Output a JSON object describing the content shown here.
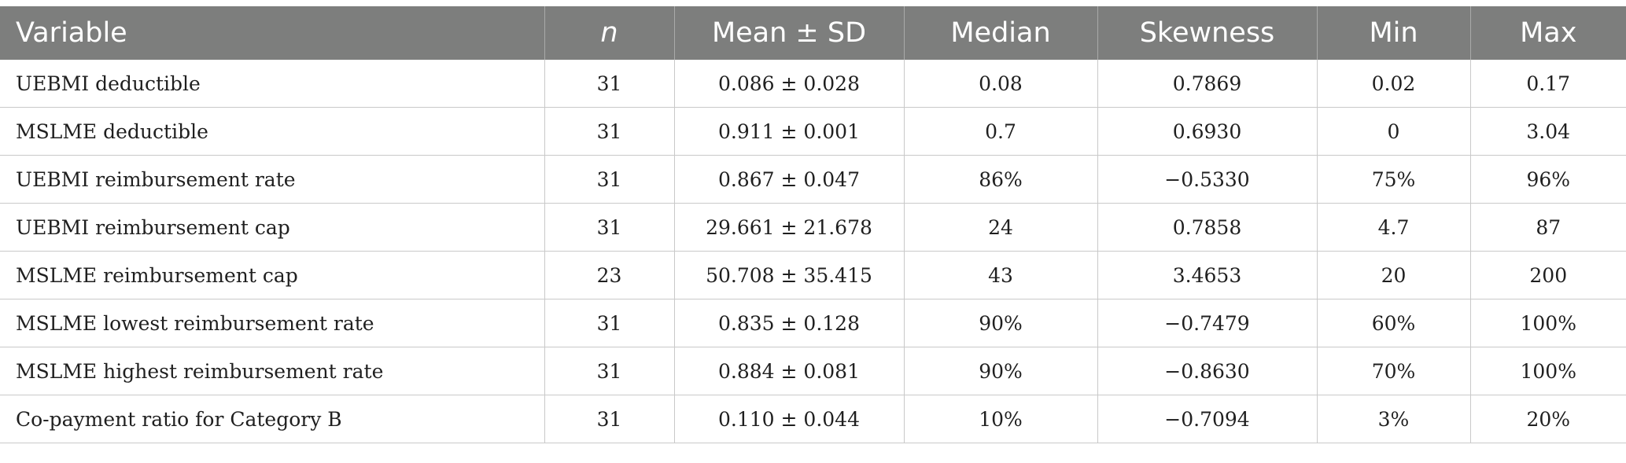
{
  "table": {
    "headers": [
      "Variable",
      "n",
      "Mean ± SD",
      "Median",
      "Skewness",
      "Min",
      "Max"
    ],
    "rows": [
      [
        "UEBMI deductible",
        "31",
        "0.086 ± 0.028",
        "0.08",
        "0.7869",
        "0.02",
        "0.17"
      ],
      [
        "MSLME deductible",
        "31",
        "0.911 ± 0.001",
        "0.7",
        "0.6930",
        "0",
        "3.04"
      ],
      [
        "UEBMI reimbursement rate",
        "31",
        "0.867 ± 0.047",
        "86%",
        "−0.5330",
        "75%",
        "96%"
      ],
      [
        "UEBMI reimbursement cap",
        "31",
        "29.661 ± 21.678",
        "24",
        "0.7858",
        "4.7",
        "87"
      ],
      [
        "MSLME reimbursement cap",
        "23",
        "50.708 ± 35.415",
        "43",
        "3.4653",
        "20",
        "200"
      ],
      [
        "MSLME lowest reimbursement rate",
        "31",
        "0.835 ± 0.128",
        "90%",
        "−0.7479",
        "60%",
        "100%"
      ],
      [
        "MSLME highest reimbursement rate",
        "31",
        "0.884 ± 0.081",
        "90%",
        "−0.8630",
        "70%",
        "100%"
      ],
      [
        "Co-payment ratio for Category B",
        "31",
        "0.110 ± 0.044",
        "10%",
        "−0.7094",
        "3%",
        "20%"
      ]
    ]
  },
  "colors": {
    "header_bg": "#7d7e7d",
    "header_text": "#ffffff",
    "grid_line": "#c9c9c9"
  }
}
